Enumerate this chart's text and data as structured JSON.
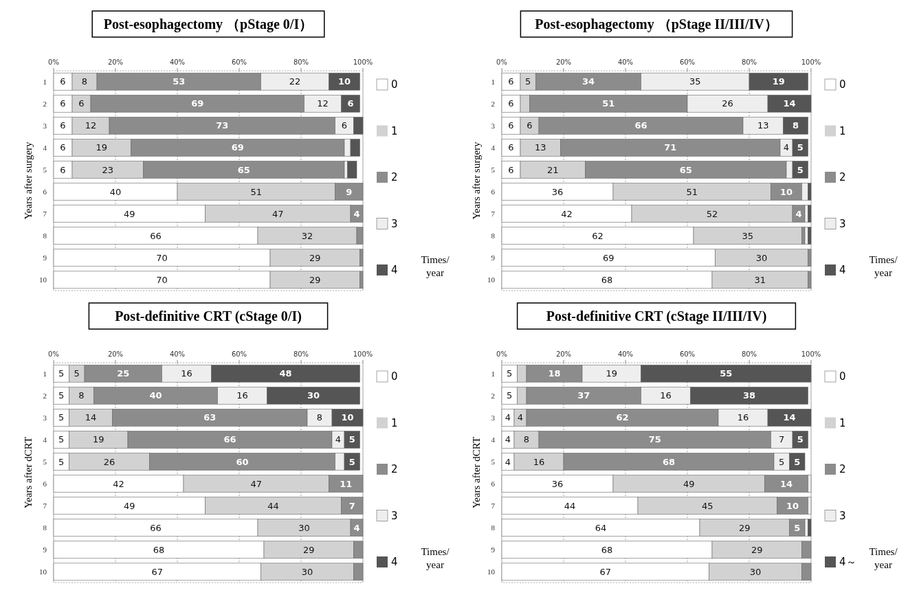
{
  "chart_data": [
    {
      "type": "bar",
      "orientation": "horizontal",
      "stacked": true,
      "title": "Post-esophagectomy （pStage 0/I）",
      "ylabel": "Years after surgery",
      "categories": [
        "1",
        "2",
        "3",
        "4",
        "5",
        "6",
        "7",
        "8",
        "9",
        "10"
      ],
      "xlim": [
        0,
        100
      ],
      "xticks": [
        {
          "value": 0,
          "label": "0%"
        },
        {
          "value": 20,
          "label": "20%"
        },
        {
          "value": 40,
          "label": "40%"
        },
        {
          "value": 60,
          "label": "60%"
        },
        {
          "value": 80,
          "label": "80%"
        },
        {
          "value": 100,
          "label": "100%"
        }
      ],
      "grid": "x",
      "legend": "right",
      "annotations": [
        "Times/ year"
      ],
      "series": [
        {
          "name": "0",
          "color": "#ffffff",
          "values": [
            6,
            6,
            6,
            6,
            6,
            40,
            49,
            66,
            70,
            70
          ],
          "value_labels": [
            "6",
            "6",
            "6",
            "6",
            "6",
            "40",
            "49",
            "66",
            "70",
            "70"
          ]
        },
        {
          "name": "1",
          "color": "#d2d2d2",
          "values": [
            8,
            6,
            12,
            19,
            23,
            51,
            47,
            32,
            29,
            29
          ],
          "value_labels": [
            "8",
            "6",
            "12",
            "19",
            "23",
            "51",
            "47",
            "32",
            "29",
            "29"
          ]
        },
        {
          "name": "2",
          "color": "#8c8c8c",
          "values": [
            53,
            69,
            73,
            69,
            65,
            9,
            4,
            2,
            1,
            1
          ],
          "value_labels": [
            "53",
            "69",
            "73",
            "69",
            "65",
            "9",
            "4",
            null,
            null,
            null
          ]
        },
        {
          "name": "3",
          "color": "#eeeeee",
          "values": [
            22,
            12,
            6,
            2,
            1,
            0,
            0,
            0,
            0,
            0
          ],
          "value_labels": [
            "22",
            "12",
            "6",
            null,
            null,
            null,
            null,
            null,
            null,
            null
          ]
        },
        {
          "name": "4",
          "color": "#555555",
          "values": [
            10,
            6,
            3,
            3,
            3,
            0,
            0,
            0,
            0,
            0
          ],
          "value_labels": [
            "10",
            "6",
            null,
            null,
            null,
            null,
            null,
            null,
            null,
            null
          ]
        }
      ]
    },
    {
      "type": "bar",
      "orientation": "horizontal",
      "stacked": true,
      "title": "Post-esophagectomy （pStage II/III/IV）",
      "ylabel": "Years after surgery",
      "categories": [
        "1",
        "2",
        "3",
        "4",
        "5",
        "6",
        "7",
        "8",
        "9",
        "10"
      ],
      "xlim": [
        0,
        100
      ],
      "xticks": [
        {
          "value": 0,
          "label": "0%"
        },
        {
          "value": 20,
          "label": "20%"
        },
        {
          "value": 40,
          "label": "40%"
        },
        {
          "value": 60,
          "label": "60%"
        },
        {
          "value": 80,
          "label": "80%"
        },
        {
          "value": 100,
          "label": "100%"
        }
      ],
      "grid": "x",
      "legend": "right",
      "annotations": [
        "Times/ year"
      ],
      "series": [
        {
          "name": "0",
          "color": "#ffffff",
          "values": [
            6,
            6,
            6,
            6,
            6,
            36,
            42,
            62,
            69,
            68
          ],
          "value_labels": [
            "6",
            "6",
            "6",
            "6",
            "6",
            "36",
            "42",
            "62",
            "69",
            "68"
          ]
        },
        {
          "name": "1",
          "color": "#d2d2d2",
          "values": [
            5,
            3,
            6,
            13,
            21,
            51,
            52,
            35,
            30,
            31
          ],
          "value_labels": [
            "5",
            null,
            "6",
            "13",
            "21",
            "51",
            "52",
            "35",
            "30",
            "31"
          ]
        },
        {
          "name": "2",
          "color": "#8c8c8c",
          "values": [
            34,
            51,
            66,
            71,
            65,
            10,
            4,
            1,
            1,
            1
          ],
          "value_labels": [
            "34",
            "51",
            "66",
            "71",
            "65",
            "10",
            "4",
            null,
            null,
            null
          ]
        },
        {
          "name": "3",
          "color": "#eeeeee",
          "values": [
            35,
            26,
            13,
            4,
            2,
            2,
            1,
            1,
            0,
            0
          ],
          "value_labels": [
            "35",
            "26",
            "13",
            "4",
            null,
            null,
            null,
            null,
            null,
            null
          ]
        },
        {
          "name": "4",
          "color": "#555555",
          "values": [
            19,
            14,
            8,
            5,
            5,
            1,
            1,
            1,
            0,
            0
          ],
          "value_labels": [
            "19",
            "14",
            "8",
            "5",
            "5",
            null,
            null,
            null,
            null,
            null
          ]
        }
      ]
    },
    {
      "type": "bar",
      "orientation": "horizontal",
      "stacked": true,
      "title": "Post-definitive CRT (cStage 0/I)",
      "ylabel": "Years after dCRT",
      "categories": [
        "1",
        "2",
        "3",
        "4",
        "5",
        "6",
        "7",
        "8",
        "9",
        "10"
      ],
      "xlim": [
        0,
        100
      ],
      "xticks": [
        {
          "value": 0,
          "label": "0%"
        },
        {
          "value": 20,
          "label": "20%"
        },
        {
          "value": 40,
          "label": "40%"
        },
        {
          "value": 60,
          "label": "60%"
        },
        {
          "value": 80,
          "label": "80%"
        },
        {
          "value": 100,
          "label": "100%"
        }
      ],
      "grid": "x",
      "legend": "right",
      "annotations": [
        "Times/ year"
      ],
      "series": [
        {
          "name": "0",
          "color": "#ffffff",
          "values": [
            5,
            5,
            5,
            5,
            5,
            42,
            49,
            66,
            68,
            67
          ],
          "value_labels": [
            "5",
            "5",
            "5",
            "5",
            "5",
            "42",
            "49",
            "66",
            "68",
            "67"
          ]
        },
        {
          "name": "1",
          "color": "#d2d2d2",
          "values": [
            5,
            8,
            14,
            19,
            26,
            47,
            44,
            30,
            29,
            30
          ],
          "value_labels": [
            "5",
            "8",
            "14",
            "19",
            "26",
            "47",
            "44",
            "30",
            "29",
            "30"
          ]
        },
        {
          "name": "2",
          "color": "#8c8c8c",
          "values": [
            25,
            40,
            63,
            66,
            60,
            11,
            7,
            4,
            3,
            3
          ],
          "value_labels": [
            "25",
            "40",
            "63",
            "66",
            "60",
            "11",
            "7",
            "4",
            null,
            null
          ]
        },
        {
          "name": "3",
          "color": "#eeeeee",
          "values": [
            16,
            16,
            8,
            4,
            3,
            0,
            0,
            0,
            0,
            0
          ],
          "value_labels": [
            "16",
            "16",
            "8",
            "4",
            null,
            null,
            null,
            null,
            null,
            null
          ]
        },
        {
          "name": "4",
          "color": "#555555",
          "values": [
            48,
            30,
            10,
            5,
            5,
            0,
            0,
            0,
            0,
            0
          ],
          "value_labels": [
            "48",
            "30",
            "10",
            "5",
            "5",
            null,
            null,
            null,
            null,
            null
          ]
        }
      ]
    },
    {
      "type": "bar",
      "orientation": "horizontal",
      "stacked": true,
      "title": "Post-definitive CRT (cStage II/III/IV)",
      "ylabel": "Years after dCRT",
      "categories": [
        "1",
        "2",
        "3",
        "4",
        "5",
        "6",
        "7",
        "8",
        "9",
        "10"
      ],
      "xlim": [
        0,
        100
      ],
      "xticks": [
        {
          "value": 0,
          "label": "0%"
        },
        {
          "value": 20,
          "label": "20%"
        },
        {
          "value": 40,
          "label": "40%"
        },
        {
          "value": 60,
          "label": "60%"
        },
        {
          "value": 80,
          "label": "80%"
        },
        {
          "value": 100,
          "label": "100%"
        }
      ],
      "grid": "x",
      "legend": "right",
      "annotations": [
        "Times/ year"
      ],
      "series": [
        {
          "name": "0",
          "color": "#ffffff",
          "values": [
            5,
            5,
            4,
            4,
            4,
            36,
            44,
            64,
            68,
            67
          ],
          "value_labels": [
            "5",
            "5",
            "4",
            "4",
            "4",
            "36",
            "44",
            "64",
            "68",
            "67"
          ]
        },
        {
          "name": "1",
          "color": "#d2d2d2",
          "values": [
            3,
            3,
            4,
            8,
            16,
            49,
            45,
            29,
            29,
            30
          ],
          "value_labels": [
            null,
            null,
            "4",
            "8",
            "16",
            "49",
            "45",
            "29",
            "29",
            "30"
          ]
        },
        {
          "name": "2",
          "color": "#8c8c8c",
          "values": [
            18,
            37,
            62,
            75,
            68,
            14,
            10,
            5,
            3,
            3
          ],
          "value_labels": [
            "18",
            "37",
            "62",
            "75",
            "68",
            "14",
            "10",
            "5",
            null,
            null
          ]
        },
        {
          "name": "3",
          "color": "#eeeeee",
          "values": [
            19,
            16,
            16,
            7,
            5,
            1,
            1,
            1,
            0,
            0
          ],
          "value_labels": [
            "19",
            "16",
            "16",
            "7",
            "5",
            null,
            null,
            null,
            null,
            null
          ]
        },
        {
          "name": "4～",
          "color": "#555555",
          "values": [
            55,
            38,
            14,
            5,
            5,
            0,
            0,
            1,
            0,
            0
          ],
          "value_labels": [
            "55",
            "38",
            "14",
            "5",
            "5",
            null,
            null,
            null,
            null,
            null
          ]
        }
      ]
    }
  ]
}
